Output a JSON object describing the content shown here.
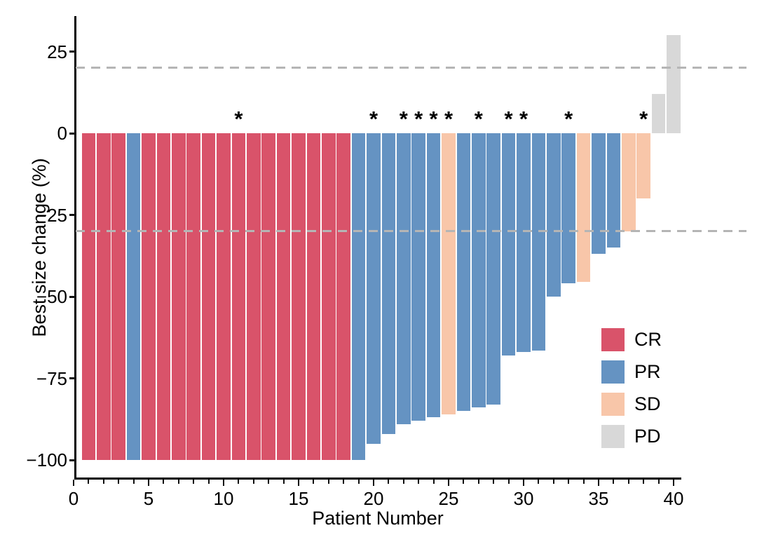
{
  "figure": {
    "background": "#ffffff",
    "axis_color": "#000000"
  },
  "chart_data": {
    "type": "bar",
    "subtype": "waterfall",
    "title": "",
    "xlabel": "Patient Number",
    "ylabel": "Best size change (%)",
    "x_ticks_major": [
      0,
      5,
      10,
      15,
      20,
      25,
      30,
      35,
      40
    ],
    "x_minor_tick_step": 1,
    "x_range": [
      0,
      40.5
    ],
    "ylim": [
      -106,
      37
    ],
    "y_ticks": [
      {
        "value": 25,
        "label": "25"
      },
      {
        "value": 0,
        "label": "0"
      },
      {
        "value": -25,
        "label": "−25"
      },
      {
        "value": -50,
        "label": "−50"
      },
      {
        "value": -75,
        "label": "−75"
      },
      {
        "value": -100,
        "label": "−100"
      }
    ],
    "grid": false,
    "reference_lines": [
      {
        "value": 20,
        "style": "dashed",
        "color": "#b5b5b5"
      },
      {
        "value": -30,
        "style": "dashed",
        "color": "#b5b5b5"
      }
    ],
    "annotation_symbol": "*",
    "legend": {
      "position": "right-inside",
      "entries": [
        {
          "label": "CR",
          "color": "#d9536a"
        },
        {
          "label": "PR",
          "color": "#6593c2"
        },
        {
          "label": "SD",
          "color": "#f8c6a9"
        },
        {
          "label": "PD",
          "color": "#d8d8d8"
        }
      ]
    },
    "categories": [
      1,
      2,
      3,
      4,
      5,
      6,
      7,
      8,
      9,
      10,
      11,
      12,
      13,
      14,
      15,
      16,
      17,
      18,
      19,
      20,
      21,
      22,
      23,
      24,
      25,
      26,
      27,
      28,
      29,
      30,
      31,
      32,
      33,
      34,
      35,
      36,
      37,
      38,
      39,
      40
    ],
    "patients": [
      {
        "n": 1,
        "value": -100,
        "response": "CR",
        "starred": false
      },
      {
        "n": 2,
        "value": -100,
        "response": "CR",
        "starred": false
      },
      {
        "n": 3,
        "value": -100,
        "response": "CR",
        "starred": false
      },
      {
        "n": 4,
        "value": -100,
        "response": "PR",
        "starred": false
      },
      {
        "n": 5,
        "value": -100,
        "response": "CR",
        "starred": false
      },
      {
        "n": 6,
        "value": -100,
        "response": "CR",
        "starred": false
      },
      {
        "n": 7,
        "value": -100,
        "response": "CR",
        "starred": false
      },
      {
        "n": 8,
        "value": -100,
        "response": "CR",
        "starred": false
      },
      {
        "n": 9,
        "value": -100,
        "response": "CR",
        "starred": false
      },
      {
        "n": 10,
        "value": -100,
        "response": "CR",
        "starred": false
      },
      {
        "n": 11,
        "value": -100,
        "response": "CR",
        "starred": true
      },
      {
        "n": 12,
        "value": -100,
        "response": "CR",
        "starred": false
      },
      {
        "n": 13,
        "value": -100,
        "response": "CR",
        "starred": false
      },
      {
        "n": 14,
        "value": -100,
        "response": "CR",
        "starred": false
      },
      {
        "n": 15,
        "value": -100,
        "response": "CR",
        "starred": false
      },
      {
        "n": 16,
        "value": -100,
        "response": "CR",
        "starred": false
      },
      {
        "n": 17,
        "value": -100,
        "response": "CR",
        "starred": false
      },
      {
        "n": 18,
        "value": -100,
        "response": "CR",
        "starred": false
      },
      {
        "n": 19,
        "value": -100,
        "response": "PR",
        "starred": false
      },
      {
        "n": 20,
        "value": -95,
        "response": "PR",
        "starred": true
      },
      {
        "n": 21,
        "value": -92,
        "response": "PR",
        "starred": false
      },
      {
        "n": 22,
        "value": -89,
        "response": "PR",
        "starred": true
      },
      {
        "n": 23,
        "value": -88,
        "response": "PR",
        "starred": true
      },
      {
        "n": 24,
        "value": -87,
        "response": "PR",
        "starred": true
      },
      {
        "n": 25,
        "value": -86,
        "response": "SD",
        "starred": true
      },
      {
        "n": 26,
        "value": -85,
        "response": "PR",
        "starred": false
      },
      {
        "n": 27,
        "value": -84,
        "response": "PR",
        "starred": true
      },
      {
        "n": 28,
        "value": -83,
        "response": "PR",
        "starred": false
      },
      {
        "n": 29,
        "value": -68,
        "response": "PR",
        "starred": true
      },
      {
        "n": 30,
        "value": -67,
        "response": "PR",
        "starred": true
      },
      {
        "n": 31,
        "value": -66.5,
        "response": "PR",
        "starred": false
      },
      {
        "n": 32,
        "value": -50,
        "response": "PR",
        "starred": false
      },
      {
        "n": 33,
        "value": -46,
        "response": "PR",
        "starred": true
      },
      {
        "n": 34,
        "value": -45.5,
        "response": "SD",
        "starred": false
      },
      {
        "n": 35,
        "value": -37,
        "response": "PR",
        "starred": false
      },
      {
        "n": 36,
        "value": -35,
        "response": "PR",
        "starred": false
      },
      {
        "n": 37,
        "value": -30,
        "response": "SD",
        "starred": false
      },
      {
        "n": 38,
        "value": -20,
        "response": "SD",
        "starred": true
      },
      {
        "n": 39,
        "value": 12,
        "response": "PD",
        "starred": false
      },
      {
        "n": 40,
        "value": 30,
        "response": "PD",
        "starred": false
      }
    ]
  }
}
